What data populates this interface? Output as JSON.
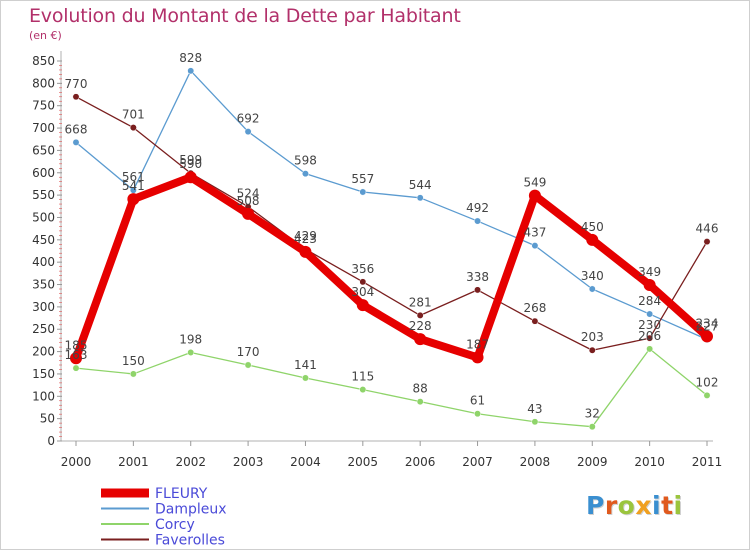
{
  "header": {
    "title": "Evolution du Montant de la Dette par Habitant",
    "unit": "(en €)"
  },
  "logo": {
    "text": "Proxiti",
    "letter_colors": [
      "#3a8fd0",
      "#e05a1e",
      "#9bc53d",
      "#f0a020",
      "#3a8fd0",
      "#e05a1e",
      "#9bc53d"
    ]
  },
  "chart_data": {
    "type": "line",
    "title": "Evolution du Montant de la Dette par Habitant",
    "xlabel": "",
    "ylabel": "",
    "x": [
      "2000",
      "2001",
      "2002",
      "2003",
      "2004",
      "2005",
      "2006",
      "2007",
      "2008",
      "2009",
      "2010",
      "2011"
    ],
    "ylim": [
      0,
      850
    ],
    "y_ticks": [
      0,
      50,
      100,
      150,
      200,
      250,
      300,
      350,
      400,
      450,
      500,
      550,
      600,
      650,
      700,
      750,
      800,
      850
    ],
    "grid": false,
    "legend_position": "bottom-left",
    "series": [
      {
        "name": "FLEURY",
        "values": [
          185,
          541,
          590,
          508,
          423,
          304,
          228,
          187,
          549,
          450,
          349,
          234
        ],
        "color": "#e60000",
        "emphasis": true
      },
      {
        "name": "Dampleux",
        "values": [
          668,
          561,
          828,
          692,
          598,
          557,
          544,
          492,
          437,
          340,
          284,
          227
        ],
        "color": "#5b9bd0",
        "emphasis": false
      },
      {
        "name": "Corcy",
        "values": [
          163,
          150,
          198,
          170,
          141,
          115,
          88,
          61,
          43,
          32,
          206,
          102
        ],
        "color": "#8fd46a",
        "emphasis": false
      },
      {
        "name": "Faverolles",
        "values": [
          770,
          701,
          599,
          524,
          429,
          356,
          281,
          338,
          268,
          203,
          230,
          446
        ],
        "color": "#7a1f1f",
        "emphasis": false
      }
    ]
  }
}
